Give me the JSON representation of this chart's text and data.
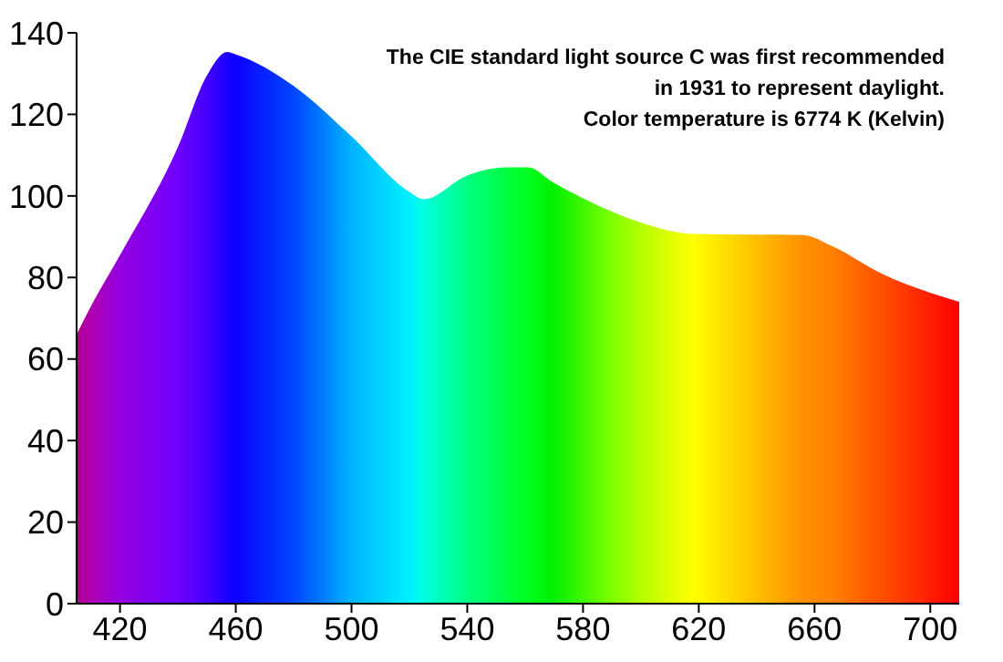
{
  "chart_data": {
    "type": "area",
    "annotations": [
      "The CIE standard light source C was first recommended",
      "in 1931 to represent daylight.",
      "Color temperature is 6774 K (Kelvin)"
    ],
    "x": [
      405,
      410,
      420,
      440,
      450,
      457,
      460,
      480,
      500,
      520,
      525,
      540,
      553.5,
      561,
      569.5,
      590.5,
      599,
      618,
      656,
      666,
      683,
      710
    ],
    "values": [
      66,
      73,
      85.5,
      112,
      129.5,
      135.3,
      134.7,
      127,
      114.6,
      101,
      99.2,
      105,
      107,
      107,
      103.4,
      96,
      93.7,
      90.7,
      90.4,
      87.7,
      81,
      74
    ],
    "colors": [
      "#b0008f",
      "#b000b0",
      "#9400e0",
      "#7000ff",
      "#4400ff",
      "#1a00ff",
      "#0c00ff",
      "#0046ff",
      "#00b4ff",
      "#00f0ff",
      "#00ffe0",
      "#00ff80",
      "#00ff40",
      "#00ff20",
      "#00f000",
      "#80ff00",
      "#b0ff00",
      "#ffff00",
      "#ff9000",
      "#ff8000",
      "#ff5000",
      "#ff0000"
    ],
    "xlim": [
      405,
      710
    ],
    "xticks": [
      420,
      460,
      500,
      540,
      580,
      620,
      660,
      700
    ],
    "ylim": [
      0,
      140
    ],
    "yticks": [
      0,
      20,
      40,
      60,
      80,
      100,
      120,
      140
    ],
    "grid": false,
    "legend": false,
    "marker": "none"
  }
}
